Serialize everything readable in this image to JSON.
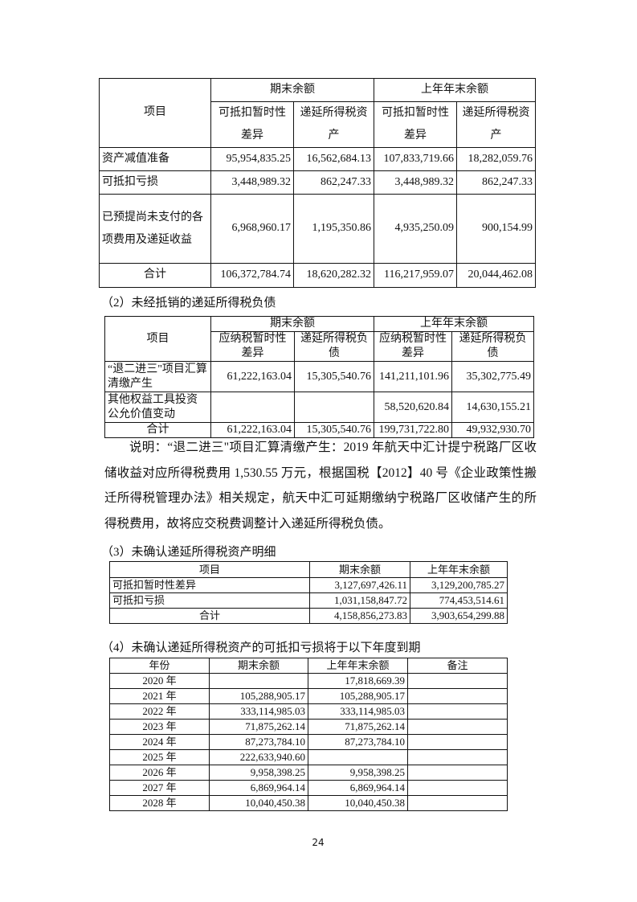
{
  "table1": {
    "header": {
      "item": "项目",
      "group_current": "期末余额",
      "group_prior": "上年年末余额",
      "col_diff": "可抵扣暂时性差异",
      "col_asset": "递延所得税资产"
    },
    "rows": [
      {
        "item": "资产减值准备",
        "cur_diff": "95,954,835.25",
        "cur_asset": "16,562,684.13",
        "prior_diff": "107,833,719.66",
        "prior_asset": "18,282,059.76"
      },
      {
        "item": "可抵扣亏损",
        "cur_diff": "3,448,989.32",
        "cur_asset": "862,247.33",
        "prior_diff": "3,448,989.32",
        "prior_asset": "862,247.33"
      },
      {
        "item": "已预提尚未支付的各项费用及递延收益",
        "cur_diff": "6,968,960.17",
        "cur_asset": "1,195,350.86",
        "prior_diff": "4,935,250.09",
        "prior_asset": "900,154.99"
      },
      {
        "item": "合计",
        "cur_diff": "106,372,784.74",
        "cur_asset": "18,620,282.32",
        "prior_diff": "116,217,959.07",
        "prior_asset": "20,044,462.08"
      }
    ]
  },
  "section2_title": "（2）未经抵销的递延所得税负债",
  "table2": {
    "header": {
      "item": "项目",
      "group_current": "期末余额",
      "group_prior": "上年年末余额",
      "col_diff": "应纳税暂时性差异",
      "col_liab_cur": "递延所得税负债",
      "col_liab_prior": "递延所得税负债"
    },
    "rows": [
      {
        "item": "“退二进三\"项目汇算清缴产生",
        "cur_diff": "61,222,163.04",
        "cur_liab": "15,305,540.76",
        "prior_diff": "141,211,101.96",
        "prior_liab": "35,302,775.49"
      },
      {
        "item": "其他权益工具投资公允价值变动",
        "cur_diff": "",
        "cur_liab": "",
        "prior_diff": "58,520,620.84",
        "prior_liab": "14,630,155.21"
      },
      {
        "item": "合计",
        "cur_diff": "61,222,163.04",
        "cur_liab": "15,305,540.76",
        "prior_diff": "199,731,722.80",
        "prior_liab": "49,932,930.70"
      }
    ]
  },
  "note": "说明：“退二进三\"项目汇算清缴产生：2019 年航天中汇计提宁税路厂区收储收益对应所得税费用 1,530.55 万元，根据国税【2012】40 号《企业政策性搬迁所得税管理办法》相关规定，航天中汇可延期缴纳宁税路厂区收储产生的所得税费用，故将应交税费调整计入递延所得税负债。",
  "section3_title": "（3）未确认递延所得税资产明细",
  "table3": {
    "header": {
      "item": "项目",
      "current": "期末余额",
      "prior": "上年年末余额"
    },
    "rows": [
      {
        "item": "可抵扣暂时性差异",
        "current": "3,127,697,426.11",
        "prior": "3,129,200,785.27"
      },
      {
        "item": "可抵扣亏损",
        "current": "1,031,158,847.72",
        "prior": "774,453,514.61"
      },
      {
        "item": "合计",
        "current": "4,158,856,273.83",
        "prior": "3,903,654,299.88"
      }
    ]
  },
  "section4_title": "（4）未确认递延所得税资产的可抵扣亏损将于以下年度到期",
  "table4": {
    "header": {
      "year": "年份",
      "current": "期末余额",
      "prior": "上年年末余额",
      "note": "备注"
    },
    "rows": [
      {
        "year": "2020 年",
        "current": "",
        "prior": "17,818,669.39",
        "note": ""
      },
      {
        "year": "2021 年",
        "current": "105,288,905.17",
        "prior": "105,288,905.17",
        "note": ""
      },
      {
        "year": "2022 年",
        "current": "333,114,985.03",
        "prior": "333,114,985.03",
        "note": ""
      },
      {
        "year": "2023 年",
        "current": "71,875,262.14",
        "prior": "71,875,262.14",
        "note": ""
      },
      {
        "year": "2024 年",
        "current": "87,273,784.10",
        "prior": "87,273,784.10",
        "note": ""
      },
      {
        "year": "2025 年",
        "current": "222,633,940.60",
        "prior": "",
        "note": ""
      },
      {
        "year": "2026 年",
        "current": "9,958,398.25",
        "prior": "9,958,398.25",
        "note": ""
      },
      {
        "year": "2027 年",
        "current": "6,869,964.14",
        "prior": "6,869,964.14",
        "note": ""
      },
      {
        "year": "2028 年",
        "current": "10,040,450.38",
        "prior": "10,040,450.38",
        "note": ""
      }
    ]
  },
  "page_number": "24"
}
